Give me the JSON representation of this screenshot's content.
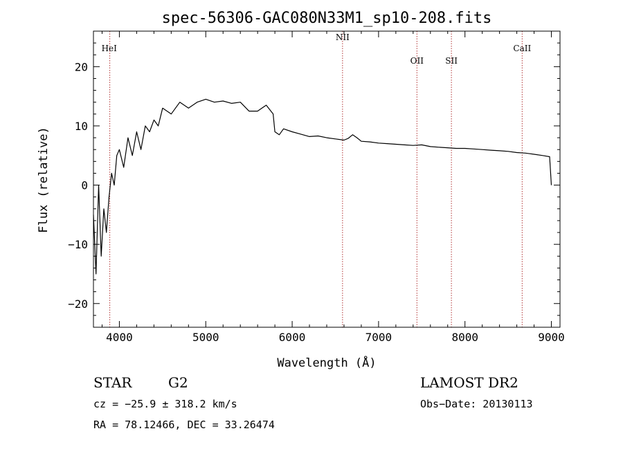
{
  "chart_data": {
    "type": "line",
    "title": "spec-56306-GAC080N33M1_sp10-208.fits",
    "xlabel": "Wavelength (Å)",
    "ylabel": "Flux (relative)",
    "xlim": [
      3700,
      9100
    ],
    "ylim": [
      -24,
      26
    ],
    "x_ticks": [
      4000,
      5000,
      6000,
      7000,
      8000,
      9000
    ],
    "y_ticks": [
      -20,
      -10,
      0,
      10,
      20
    ],
    "grid": false,
    "spectral_lines": [
      {
        "name": "HeI",
        "x": 3889
      },
      {
        "name": "NII",
        "x": 6583
      },
      {
        "name": "OII",
        "x": 7444
      },
      {
        "name": "SII",
        "x": 7843
      },
      {
        "name": "CaII",
        "x": 8662
      }
    ],
    "series": [
      {
        "x": [
          3700,
          3730,
          3760,
          3790,
          3820,
          3850,
          3880,
          3910,
          3940,
          3970,
          4000,
          4050,
          4100,
          4150,
          4200,
          4250,
          4300,
          4350,
          4400,
          4450,
          4500,
          4600,
          4700,
          4800,
          4900,
          5000,
          5100,
          5200,
          5300,
          5400,
          5500,
          5600,
          5700,
          5780,
          5800,
          5850,
          5900,
          6000,
          6100,
          6200,
          6300,
          6400,
          6500,
          6600,
          6650,
          6700,
          6750,
          6800,
          6900,
          7000,
          7100,
          7200,
          7300,
          7400,
          7500,
          7600,
          7700,
          7800,
          7900,
          8000,
          8100,
          8200,
          8300,
          8400,
          8500,
          8600,
          8700,
          8800,
          8900,
          8980,
          9000
        ],
        "y": [
          -5,
          -15,
          0,
          -12,
          -4,
          -8,
          -2,
          2,
          0,
          5,
          6,
          3,
          8,
          5,
          9,
          6,
          10,
          9,
          11,
          10,
          13,
          12,
          14,
          13,
          14,
          14.5,
          14,
          14.2,
          13.8,
          14,
          12.5,
          12.5,
          13.5,
          12,
          9,
          8.5,
          9.5,
          9,
          8.6,
          8.2,
          8.3,
          8,
          7.8,
          7.6,
          7.9,
          8.5,
          8,
          7.4,
          7.3,
          7.1,
          7,
          6.9,
          6.8,
          6.7,
          6.8,
          6.5,
          6.4,
          6.3,
          6.2,
          6.2,
          6.1,
          6,
          5.9,
          5.8,
          5.7,
          5.5,
          5.4,
          5.2,
          5.0,
          4.8,
          0
        ]
      }
    ]
  },
  "info": {
    "object_class": "STAR",
    "subclass": "G2",
    "survey": "LAMOST DR2",
    "cz": "cz = −25.9 ± 318.2 km/s",
    "obs_date": "Obs−Date: 20130113",
    "coords": "RA =  78.12466, DEC =  33.26474"
  }
}
